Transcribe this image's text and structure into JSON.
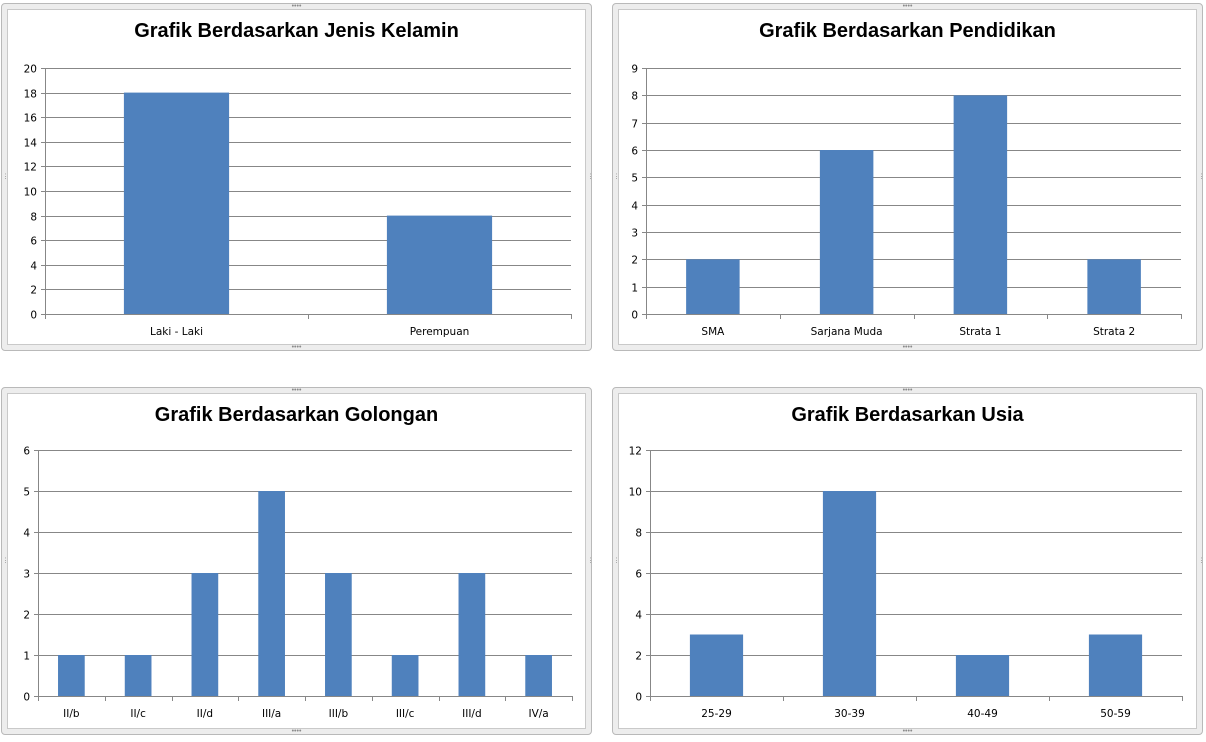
{
  "colors": {
    "bar": "#4f81bd",
    "grid": "#878787",
    "axis": "#878787",
    "border": "#b9b9b9"
  },
  "chart_data": [
    {
      "type": "bar",
      "title": "Grafik Berdasarkan Jenis Kelamin",
      "categories": [
        "Laki - Laki",
        "Perempuan"
      ],
      "values": [
        18,
        8
      ],
      "ylim": [
        0,
        20
      ],
      "yticks": [
        0,
        2,
        4,
        6,
        8,
        10,
        12,
        14,
        16,
        18,
        20
      ],
      "xlabel": "",
      "ylabel": "",
      "grid": true,
      "legend": "none"
    },
    {
      "type": "bar",
      "title": "Grafik Berdasarkan Pendidikan",
      "categories": [
        "SMA",
        "Sarjana Muda",
        "Strata 1",
        "Strata 2"
      ],
      "values": [
        2,
        6,
        8,
        2
      ],
      "ylim": [
        0,
        9
      ],
      "yticks": [
        0,
        1,
        2,
        3,
        4,
        5,
        6,
        7,
        8,
        9
      ],
      "xlabel": "",
      "ylabel": "",
      "grid": true,
      "legend": "none"
    },
    {
      "type": "bar",
      "title": "Grafik Berdasarkan Golongan",
      "categories": [
        "II/b",
        "II/c",
        "II/d",
        "III/a",
        "III/b",
        "III/c",
        "III/d",
        "IV/a"
      ],
      "values": [
        1,
        1,
        3,
        5,
        3,
        1,
        3,
        1
      ],
      "ylim": [
        0,
        6
      ],
      "yticks": [
        0,
        1,
        2,
        3,
        4,
        5,
        6
      ],
      "xlabel": "",
      "ylabel": "",
      "grid": true,
      "legend": "none"
    },
    {
      "type": "bar",
      "title": "Grafik Berdasarkan Usia",
      "categories": [
        "25-29",
        "30-39",
        "40-49",
        "50-59"
      ],
      "values": [
        3,
        10,
        2,
        3
      ],
      "ylim": [
        0,
        12
      ],
      "yticks": [
        0,
        2,
        4,
        6,
        8,
        10,
        12
      ],
      "xlabel": "",
      "ylabel": "",
      "grid": true,
      "legend": "none"
    }
  ]
}
